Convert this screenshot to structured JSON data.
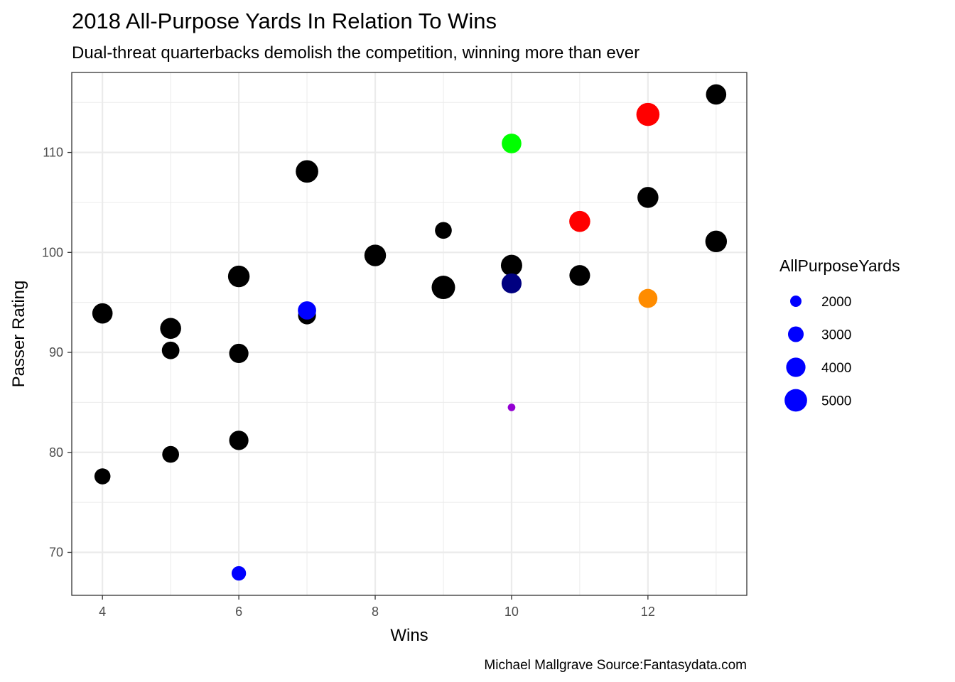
{
  "chart_data": {
    "type": "scatter",
    "title": "2018 All-Purpose Yards In Relation To Wins",
    "subtitle": "Dual-threat quarterbacks demolish the competition, winning more than ever",
    "xlabel": "Wins",
    "ylabel": "Passer Rating",
    "caption": "Michael Mallgrave Source:Fantasydata.com",
    "xlim": [
      3.55,
      13.45
    ],
    "ylim": [
      65.7,
      118.0
    ],
    "x_ticks": [
      4,
      6,
      8,
      10,
      12
    ],
    "y_ticks": [
      70,
      80,
      90,
      100,
      110
    ],
    "x_minor": [
      5,
      7,
      9,
      11,
      13
    ],
    "y_minor": [
      75,
      85,
      95,
      105,
      115
    ],
    "grid": true,
    "size_range_yards": [
      1000,
      5300
    ],
    "legend": {
      "title": "AllPurposeYards",
      "placement": "right",
      "color": "#0000ff",
      "entries": [
        {
          "label": "2000",
          "value": 2000
        },
        {
          "label": "3000",
          "value": 3000
        },
        {
          "label": "4000",
          "value": 4000
        },
        {
          "label": "5000",
          "value": 5000
        }
      ]
    },
    "points": [
      {
        "x": 4,
        "y": 93.9,
        "yards": 4300,
        "color": "#000000"
      },
      {
        "x": 4,
        "y": 77.6,
        "yards": 3100,
        "color": "#000000"
      },
      {
        "x": 5,
        "y": 92.4,
        "yards": 4500,
        "color": "#000000"
      },
      {
        "x": 5,
        "y": 90.2,
        "yards": 3500,
        "color": "#000000"
      },
      {
        "x": 5,
        "y": 79.8,
        "yards": 3300,
        "color": "#000000"
      },
      {
        "x": 6,
        "y": 97.6,
        "yards": 4700,
        "color": "#000000"
      },
      {
        "x": 6,
        "y": 89.9,
        "yards": 4000,
        "color": "#000000"
      },
      {
        "x": 6,
        "y": 81.2,
        "yards": 4000,
        "color": "#000000"
      },
      {
        "x": 6,
        "y": 67.9,
        "yards": 2700,
        "color": "#0000ff"
      },
      {
        "x": 7,
        "y": 108.1,
        "yards": 5000,
        "color": "#000000"
      },
      {
        "x": 7,
        "y": 93.7,
        "yards": 3600,
        "color": "#000000"
      },
      {
        "x": 7,
        "y": 94.2,
        "yards": 3700,
        "color": "#0000ff"
      },
      {
        "x": 8,
        "y": 99.7,
        "yards": 4700,
        "color": "#000000"
      },
      {
        "x": 9,
        "y": 102.2,
        "yards": 3300,
        "color": "#000000"
      },
      {
        "x": 9,
        "y": 96.5,
        "yards": 5300,
        "color": "#000000"
      },
      {
        "x": 10,
        "y": 110.9,
        "yards": 4100,
        "color": "#00ff00"
      },
      {
        "x": 10,
        "y": 98.7,
        "yards": 4600,
        "color": "#000000"
      },
      {
        "x": 10,
        "y": 96.9,
        "yards": 4200,
        "color": "#000080"
      },
      {
        "x": 10,
        "y": 84.5,
        "yards": 1300,
        "color": "#9400d3"
      },
      {
        "x": 11,
        "y": 103.1,
        "yards": 4500,
        "color": "#ff0000"
      },
      {
        "x": 11,
        "y": 97.7,
        "yards": 4400,
        "color": "#000000"
      },
      {
        "x": 12,
        "y": 113.8,
        "yards": 5200,
        "color": "#ff0000"
      },
      {
        "x": 12,
        "y": 105.5,
        "yards": 4500,
        "color": "#000000"
      },
      {
        "x": 12,
        "y": 95.4,
        "yards": 3900,
        "color": "#ff8c00"
      },
      {
        "x": 13,
        "y": 115.8,
        "yards": 4300,
        "color": "#000000"
      },
      {
        "x": 13,
        "y": 101.1,
        "yards": 4700,
        "color": "#000000"
      }
    ]
  }
}
